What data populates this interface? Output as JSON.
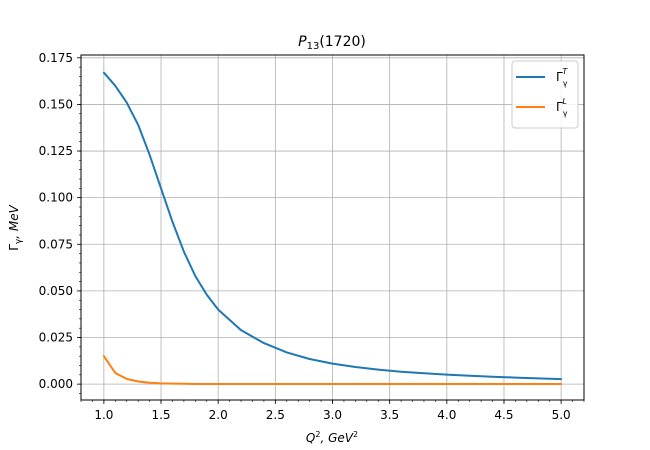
{
  "chart_data": {
    "type": "line",
    "title": {
      "main": "P",
      "sub": "13",
      "rest": "(1720)"
    },
    "xlabel": {
      "q": "Q",
      "qsup": "2",
      "sep": ", GeV",
      "unitsup": "2"
    },
    "ylabel": {
      "gamma": "Γ",
      "sub": "γ",
      "rest": ", MeV"
    },
    "xlim": [
      0.8,
      5.2
    ],
    "ylim": [
      -0.0085,
      0.1765
    ],
    "x_ticks": [
      "1.0",
      "1.5",
      "2.0",
      "2.5",
      "3.0",
      "3.5",
      "4.0",
      "4.5",
      "5.0"
    ],
    "y_ticks": [
      "0.000",
      "0.025",
      "0.050",
      "0.075",
      "0.100",
      "0.125",
      "0.150",
      "0.175"
    ],
    "grid": true,
    "legend_position": "top-right",
    "x": [
      1.0,
      1.1,
      1.2,
      1.3,
      1.4,
      1.5,
      1.6,
      1.7,
      1.8,
      1.9,
      2.0,
      2.2,
      2.4,
      2.6,
      2.8,
      3.0,
      3.2,
      3.4,
      3.6,
      3.8,
      4.0,
      4.2,
      4.4,
      4.6,
      4.8,
      5.0
    ],
    "series": [
      {
        "name": "Γγ T",
        "legend": {
          "g": "Γ",
          "sub": "γ",
          "sup": "T"
        },
        "color": "#1f77b4",
        "values": [
          0.167,
          0.16,
          0.151,
          0.139,
          0.123,
          0.105,
          0.087,
          0.071,
          0.058,
          0.048,
          0.04,
          0.029,
          0.022,
          0.017,
          0.0135,
          0.011,
          0.0092,
          0.0078,
          0.0067,
          0.0058,
          0.0051,
          0.0045,
          0.004,
          0.0035,
          0.0031,
          0.0027
        ]
      },
      {
        "name": "Γγ L",
        "legend": {
          "g": "Γ",
          "sub": "γ",
          "sup": "L"
        },
        "color": "#ff7f0e",
        "values": [
          0.015,
          0.006,
          0.0028,
          0.0014,
          0.0007,
          0.0004,
          0.0003,
          0.0002,
          0.0001,
          0.0001,
          0.0001,
          0.0001,
          0.0001,
          0.0001,
          0.0001,
          0.0001,
          0.0001,
          0.0001,
          0.0001,
          0.0001,
          0.0001,
          0.0001,
          0.0001,
          0.0001,
          0.0001,
          0.0001
        ]
      }
    ]
  }
}
